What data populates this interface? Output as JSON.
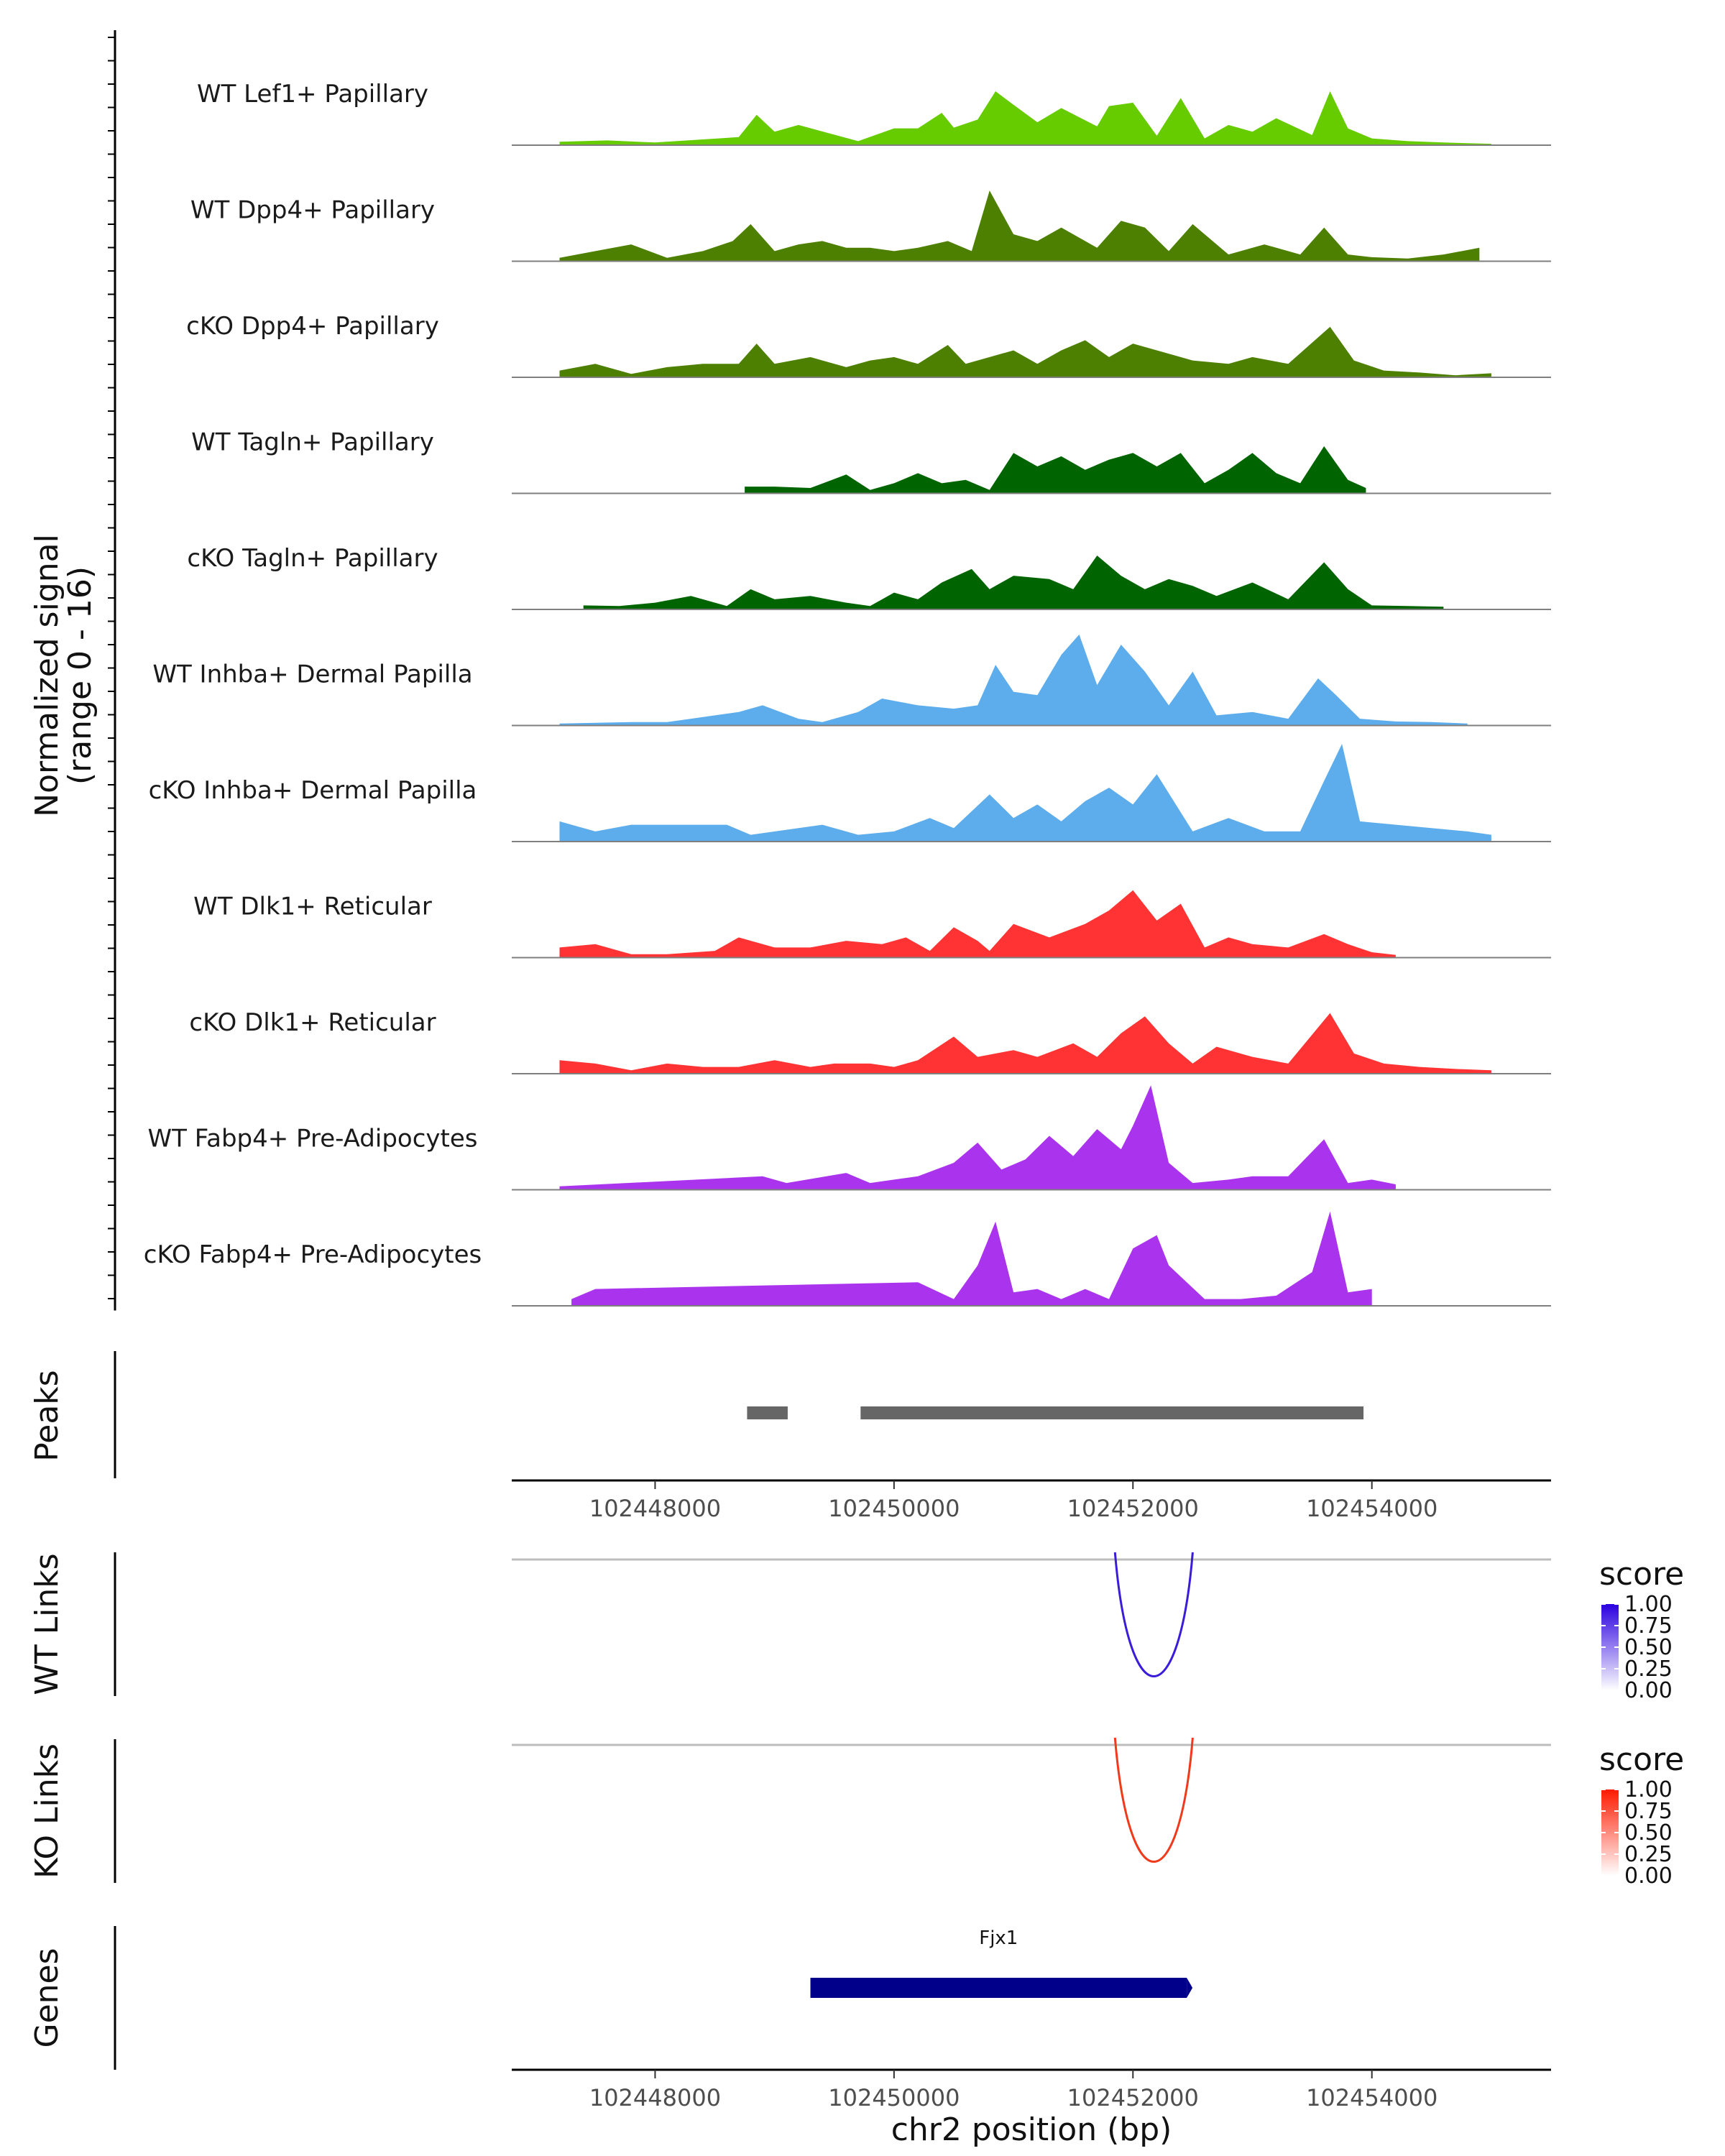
{
  "chart_data": {
    "type": "area",
    "region": "chr2",
    "xlim": [
      102446800,
      102455500
    ],
    "signal_ylabel": "Normalized signal",
    "signal_range_label": "(range 0 - 16)",
    "signal_ylim": [
      0,
      16
    ],
    "tracks": [
      {
        "name": "WT Lef1+ Papillary",
        "color": "#66CC00",
        "x": [
          102447200,
          102447600,
          102448000,
          102448700,
          102448850,
          102449000,
          102449200,
          102449700,
          102450000,
          102450200,
          102450400,
          102450500,
          102450700,
          102450850,
          102451000,
          102451200,
          102451400,
          102451700,
          102451800,
          102452000,
          102452200,
          102452400,
          102452600,
          102452800,
          102453000,
          102453200,
          102453500,
          102453650,
          102453800,
          102454000,
          102454300,
          102454600,
          102455000
        ],
        "y": [
          0.5,
          0.7,
          0.4,
          1.2,
          4.5,
          2.0,
          3.0,
          0.6,
          2.5,
          2.5,
          4.8,
          2.6,
          3.8,
          8.0,
          6.0,
          3.4,
          5.5,
          2.8,
          5.8,
          6.3,
          1.4,
          7.0,
          1.0,
          3.0,
          2.0,
          4.0,
          1.5,
          8.0,
          2.5,
          1.0,
          0.6,
          0.4,
          0.2
        ]
      },
      {
        "name": "WT Dpp4+ Papillary",
        "color": "#4D8000",
        "x": [
          102447200,
          102447500,
          102447800,
          102448100,
          102448400,
          102448650,
          102448800,
          102449000,
          102449200,
          102449400,
          102449600,
          102449800,
          102450000,
          102450200,
          102450450,
          102450650,
          102450800,
          102451000,
          102451200,
          102451400,
          102451700,
          102451900,
          102452100,
          102452300,
          102452500,
          102452800,
          102453100,
          102453400,
          102453600,
          102453800,
          102454000,
          102454300,
          102454600,
          102454900
        ],
        "y": [
          0.5,
          1.5,
          2.5,
          0.5,
          1.5,
          3.0,
          5.5,
          1.5,
          2.5,
          3.0,
          2.0,
          2.0,
          1.5,
          2.0,
          3.0,
          1.5,
          10.5,
          4.0,
          3.0,
          5.0,
          2.0,
          6.0,
          5.0,
          1.5,
          5.5,
          1.0,
          2.5,
          1.0,
          5.0,
          1.0,
          0.6,
          0.4,
          1.0,
          2.0
        ]
      },
      {
        "name": "cKO Dpp4+ Papillary",
        "color": "#4D8000",
        "x": [
          102447200,
          102447500,
          102447800,
          102448100,
          102448400,
          102448700,
          102448850,
          102449000,
          102449300,
          102449600,
          102449800,
          102450000,
          102450200,
          102450450,
          102450600,
          102450800,
          102451000,
          102451200,
          102451400,
          102451600,
          102451800,
          102452000,
          102452200,
          102452500,
          102452800,
          102453000,
          102453300,
          102453650,
          102453850,
          102454100,
          102454400,
          102454700,
          102455000
        ],
        "y": [
          1.0,
          2.0,
          0.5,
          1.5,
          2.0,
          2.0,
          5.0,
          2.0,
          3.0,
          1.5,
          2.5,
          3.0,
          2.0,
          4.8,
          2.0,
          3.0,
          4.0,
          2.0,
          4.0,
          5.5,
          3.0,
          5.0,
          4.0,
          2.5,
          2.0,
          3.0,
          2.0,
          7.5,
          2.5,
          1.0,
          0.7,
          0.3,
          0.6
        ]
      },
      {
        "name": "WT Tagln+ Papillary",
        "color": "#006400",
        "x": [
          102448750,
          102449000,
          102449300,
          102449600,
          102449800,
          102450000,
          102450200,
          102450400,
          102450600,
          102450800,
          102451000,
          102451200,
          102451400,
          102451600,
          102451800,
          102452000,
          102452200,
          102452400,
          102452600,
          102452800,
          102453000,
          102453200,
          102453400,
          102453600,
          102453800,
          102453950
        ],
        "y": [
          1.0,
          1.0,
          0.8,
          2.8,
          0.5,
          1.5,
          3.0,
          1.5,
          2.0,
          0.5,
          6.0,
          4.0,
          5.5,
          3.5,
          5.0,
          6.0,
          4.0,
          6.0,
          1.5,
          3.5,
          6.0,
          3.0,
          1.5,
          7.0,
          2.0,
          0.8
        ]
      },
      {
        "name": "cKO Tagln+ Papillary",
        "color": "#006400",
        "x": [
          102447400,
          102447700,
          102448000,
          102448300,
          102448600,
          102448800,
          102449000,
          102449300,
          102449600,
          102449800,
          102450000,
          102450200,
          102450400,
          102450650,
          102450800,
          102451000,
          102451300,
          102451500,
          102451700,
          102451900,
          102452100,
          102452300,
          102452500,
          102452700,
          102453000,
          102453300,
          102453600,
          102453800,
          102454000,
          102454300,
          102454600
        ],
        "y": [
          0.6,
          0.5,
          1.0,
          2.0,
          0.5,
          3.0,
          1.5,
          2.0,
          1.0,
          0.5,
          2.5,
          1.5,
          4.0,
          6.0,
          3.0,
          5.0,
          4.5,
          3.0,
          8.0,
          5.0,
          3.0,
          4.5,
          3.5,
          2.0,
          4.0,
          1.5,
          7.0,
          3.0,
          0.6,
          0.5,
          0.4
        ]
      },
      {
        "name": "WT Inhba+ Dermal Papilla",
        "color": "#5DADEC",
        "x": [
          102447200,
          102447800,
          102448100,
          102448300,
          102448500,
          102448700,
          102448900,
          102449200,
          102449400,
          102449700,
          102449900,
          102450200,
          102450500,
          102450700,
          102450850,
          102451000,
          102451200,
          102451400,
          102451550,
          102451700,
          102451900,
          102452100,
          102452300,
          102452500,
          102452700,
          102453000,
          102453300,
          102453550,
          102453700,
          102453900,
          102454200,
          102454500,
          102454800
        ],
        "y": [
          0.3,
          0.5,
          0.5,
          1.0,
          1.5,
          2.0,
          3.0,
          1.0,
          0.5,
          2.0,
          4.0,
          3.0,
          2.5,
          3.0,
          9.0,
          5.0,
          4.5,
          10.5,
          13.5,
          6.0,
          12.0,
          8.0,
          3.0,
          8.0,
          1.5,
          2.0,
          1.0,
          7.0,
          4.5,
          1.0,
          0.6,
          0.5,
          0.3
        ]
      },
      {
        "name": "cKO Inhba+ Dermal Papilla",
        "color": "#5DADEC",
        "x": [
          102447200,
          102447500,
          102447800,
          102448600,
          102448800,
          102449400,
          102449700,
          102450000,
          102450300,
          102450500,
          102450800,
          102451000,
          102451200,
          102451400,
          102451600,
          102451800,
          102452000,
          102452200,
          102452500,
          102452800,
          102453100,
          102453400,
          102453600,
          102453750,
          102453900,
          102454800,
          102455000
        ],
        "y": [
          3.0,
          1.5,
          2.5,
          2.5,
          1.0,
          2.5,
          1.0,
          1.5,
          3.5,
          2.0,
          7.0,
          3.5,
          5.5,
          3.0,
          6.0,
          8.0,
          5.5,
          10.0,
          1.5,
          3.5,
          1.5,
          1.5,
          9.0,
          14.5,
          3.0,
          1.5,
          1.0
        ]
      },
      {
        "name": "WT Dlk1+ Reticular",
        "color": "#FF3333",
        "x": [
          102447200,
          102447500,
          102447800,
          102448100,
          102448500,
          102448700,
          102449000,
          102449300,
          102449600,
          102449900,
          102450100,
          102450300,
          102450500,
          102450700,
          102450800,
          102451000,
          102451300,
          102451600,
          102451800,
          102452000,
          102452200,
          102452400,
          102452600,
          102452800,
          102453000,
          102453300,
          102453600,
          102453800,
          102454000,
          102454200
        ],
        "y": [
          1.5,
          2.0,
          0.5,
          0.5,
          1.0,
          3.0,
          1.5,
          1.5,
          2.5,
          2.0,
          3.0,
          1.0,
          4.5,
          2.5,
          1.0,
          5.0,
          3.0,
          5.0,
          7.0,
          10.0,
          5.5,
          8.0,
          1.5,
          3.0,
          2.0,
          1.5,
          3.5,
          2.0,
          0.8,
          0.4
        ]
      },
      {
        "name": "cKO Dlk1+ Reticular",
        "color": "#FF3333",
        "x": [
          102447200,
          102447500,
          102447800,
          102448100,
          102448400,
          102448700,
          102449000,
          102449300,
          102449500,
          102449800,
          102450000,
          102450200,
          102450500,
          102450700,
          102451000,
          102451200,
          102451500,
          102451700,
          102451900,
          102452100,
          102452300,
          102452500,
          102452700,
          102453000,
          102453300,
          102453650,
          102453850,
          102454100,
          102454400,
          102454700,
          102455000
        ],
        "y": [
          2.0,
          1.5,
          0.5,
          1.5,
          1.0,
          1.0,
          2.0,
          1.0,
          1.5,
          1.5,
          1.0,
          2.0,
          5.5,
          2.5,
          3.5,
          2.5,
          4.5,
          2.5,
          6.0,
          8.5,
          4.5,
          1.5,
          4.0,
          2.5,
          1.5,
          9.0,
          3.0,
          1.5,
          1.0,
          0.7,
          0.5
        ]
      },
      {
        "name": "WT Fabp4+ Pre-Adipocytes",
        "color": "#AA33EE",
        "x": [
          102447200,
          102448900,
          102449100,
          102449600,
          102449800,
          102450000,
          102450200,
          102450500,
          102450700,
          102450900,
          102451100,
          102451300,
          102451500,
          102451700,
          102451900,
          102452000,
          102452150,
          102452300,
          102452500,
          102452800,
          102453000,
          102453300,
          102453600,
          102453800,
          102454000,
          102454200
        ],
        "y": [
          0.5,
          2.0,
          1.0,
          2.5,
          1.0,
          1.5,
          2.0,
          4.0,
          7.0,
          3.0,
          4.5,
          8.0,
          5.0,
          9.0,
          6.0,
          9.5,
          15.5,
          4.0,
          1.0,
          1.5,
          2.0,
          2.0,
          7.5,
          1.0,
          1.5,
          0.8
        ]
      },
      {
        "name": "cKO Fabp4+ Pre-Adipocytes",
        "color": "#AA33EE",
        "x": [
          102447300,
          102447500,
          102450200,
          102450500,
          102450700,
          102450850,
          102451000,
          102451200,
          102451400,
          102451600,
          102451800,
          102452000,
          102452200,
          102452300,
          102452600,
          102452900,
          102453200,
          102453500,
          102453650,
          102453800,
          102454000
        ],
        "y": [
          1.0,
          2.5,
          3.5,
          1.0,
          6.0,
          12.5,
          2.0,
          2.5,
          1.0,
          2.5,
          1.0,
          8.5,
          10.5,
          6.0,
          1.0,
          1.0,
          1.5,
          5.0,
          14.0,
          2.0,
          2.5
        ]
      }
    ],
    "peaks": {
      "label": "Peaks",
      "intervals": [
        [
          102448770,
          102449110
        ],
        [
          102449720,
          102453930
        ]
      ],
      "color": "#666666"
    },
    "x_ticks": [
      102448000,
      102450000,
      102452000,
      102454000
    ],
    "x_tick_labels": [
      "102448000",
      "102450000",
      "102452000",
      "102454000"
    ],
    "x_axis_title": "chr2 position (bp)",
    "links": [
      {
        "label": "WT Links",
        "start": 102451850,
        "end": 102452500,
        "score": 1.0,
        "color": "#3A1CD9",
        "legend": {
          "title": "score",
          "ticks": [
            "1.00",
            "0.75",
            "0.50",
            "0.25",
            "0.00"
          ],
          "low_color": "#FFFFFF",
          "high_color": "#2A00E0"
        }
      },
      {
        "label": "KO Links",
        "start": 102451850,
        "end": 102452500,
        "score": 1.0,
        "color": "#F03A1C",
        "legend": {
          "title": "score",
          "ticks": [
            "1.00",
            "0.75",
            "0.50",
            "0.25",
            "0.00"
          ],
          "low_color": "#FFFFFF",
          "high_color": "#FF1A00"
        }
      }
    ],
    "genes": {
      "label": "Genes",
      "items": [
        {
          "name": "Fjx1",
          "start": 102449300,
          "end": 102452450,
          "color": "#00008B"
        }
      ]
    }
  }
}
